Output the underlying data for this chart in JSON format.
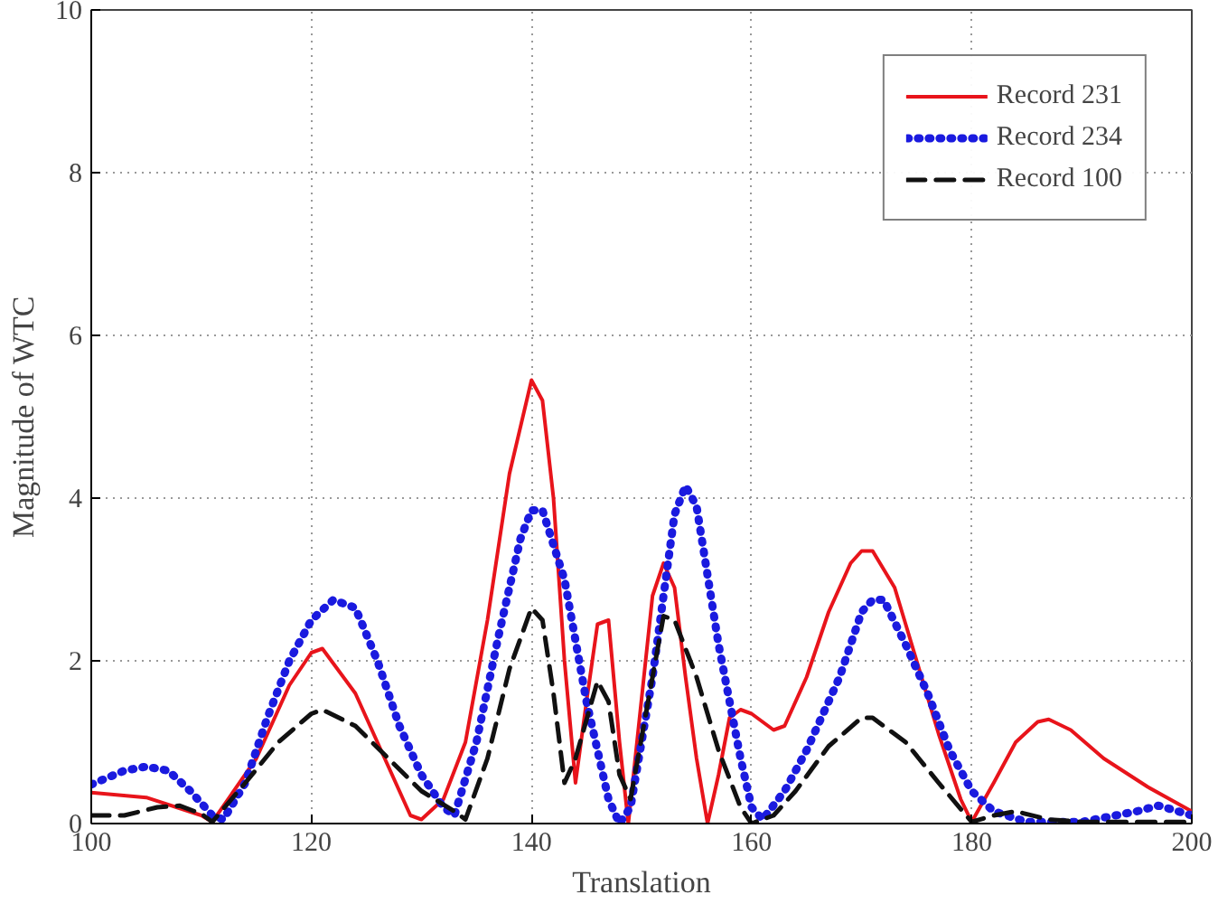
{
  "chart_data": {
    "type": "line",
    "xlabel": "Translation",
    "ylabel": "Magnitude of WTC",
    "xlim": [
      100,
      200
    ],
    "xticks": [
      100,
      120,
      140,
      160,
      180,
      200
    ],
    "ylim": [
      0,
      10
    ],
    "yticks": [
      0,
      2,
      4,
      6,
      8,
      10
    ],
    "grid": true,
    "legend": "top right",
    "marker": "none",
    "series": [
      {
        "name": "Record 231",
        "color": "#e8141b",
        "line_style": "solid",
        "x": [
          100,
          105,
          110,
          111,
          115,
          118,
          120,
          121,
          124,
          127,
          129,
          130,
          132,
          134,
          136,
          138,
          140,
          141,
          142,
          143,
          144,
          145,
          146,
          147,
          148,
          148.8,
          151,
          152,
          153,
          154,
          155,
          156,
          157,
          158,
          159,
          160,
          162,
          163,
          165,
          167,
          169,
          170,
          171,
          173,
          175,
          177,
          179,
          180,
          182,
          184,
          186,
          187,
          189,
          192,
          196,
          200
        ],
        "values": [
          0.38,
          0.32,
          0.1,
          0.02,
          0.8,
          1.7,
          2.1,
          2.15,
          1.6,
          0.7,
          0.1,
          0.05,
          0.3,
          1.0,
          2.5,
          4.3,
          5.45,
          5.2,
          4.0,
          2.0,
          0.5,
          1.5,
          2.45,
          2.5,
          1.0,
          0.0,
          2.8,
          3.2,
          2.9,
          1.8,
          0.8,
          0.0,
          0.6,
          1.3,
          1.4,
          1.35,
          1.15,
          1.2,
          1.8,
          2.6,
          3.2,
          3.35,
          3.35,
          2.9,
          2.0,
          1.1,
          0.3,
          0.02,
          0.5,
          1.0,
          1.25,
          1.28,
          1.15,
          0.8,
          0.45,
          0.15
        ]
      },
      {
        "name": "Record 234",
        "color": "#1a1adf",
        "line_style": "dotted",
        "x": [
          100,
          103,
          105,
          107,
          109,
          111,
          112,
          114,
          116,
          118,
          120,
          122,
          124,
          126,
          128,
          130,
          132,
          133,
          135,
          137,
          139,
          140,
          141,
          143,
          145,
          147,
          148,
          149,
          151,
          153,
          154,
          155,
          157,
          159,
          160,
          161,
          163,
          165,
          168,
          170,
          171,
          172,
          174,
          176,
          178,
          180,
          182,
          185,
          190,
          195,
          197,
          200
        ],
        "values": [
          0.48,
          0.65,
          0.7,
          0.65,
          0.4,
          0.1,
          0.05,
          0.5,
          1.3,
          2.0,
          2.5,
          2.75,
          2.65,
          2.0,
          1.2,
          0.6,
          0.2,
          0.1,
          1.0,
          2.3,
          3.5,
          3.85,
          3.85,
          3.0,
          1.5,
          0.3,
          0.0,
          0.2,
          1.8,
          3.8,
          4.15,
          3.9,
          2.2,
          0.8,
          0.2,
          0.05,
          0.4,
          0.9,
          1.8,
          2.6,
          2.75,
          2.75,
          2.2,
          1.6,
          0.9,
          0.4,
          0.15,
          0.02,
          0.02,
          0.15,
          0.22,
          0.1
        ]
      },
      {
        "name": "Record 100",
        "color": "#111111",
        "line_style": "dashed",
        "x": [
          100,
          103,
          106,
          108,
          110,
          111,
          114,
          117,
          120,
          121,
          124,
          127,
          130,
          133,
          134,
          136,
          138,
          140,
          141,
          142,
          143,
          144,
          146,
          147,
          148,
          149,
          151,
          152,
          153,
          155,
          157,
          159,
          160,
          162,
          164,
          167,
          170,
          171,
          174,
          177,
          180,
          182,
          184,
          187,
          190,
          200
        ],
        "values": [
          0.1,
          0.1,
          0.2,
          0.22,
          0.12,
          0.02,
          0.5,
          1.0,
          1.35,
          1.4,
          1.2,
          0.8,
          0.4,
          0.15,
          0.05,
          0.8,
          1.9,
          2.65,
          2.5,
          1.6,
          0.5,
          0.8,
          1.75,
          1.5,
          0.6,
          0.3,
          1.8,
          2.55,
          2.5,
          1.8,
          0.9,
          0.2,
          0.0,
          0.1,
          0.4,
          0.95,
          1.3,
          1.3,
          1.0,
          0.5,
          0.02,
          0.1,
          0.15,
          0.05,
          0.02,
          0.02
        ]
      }
    ]
  }
}
